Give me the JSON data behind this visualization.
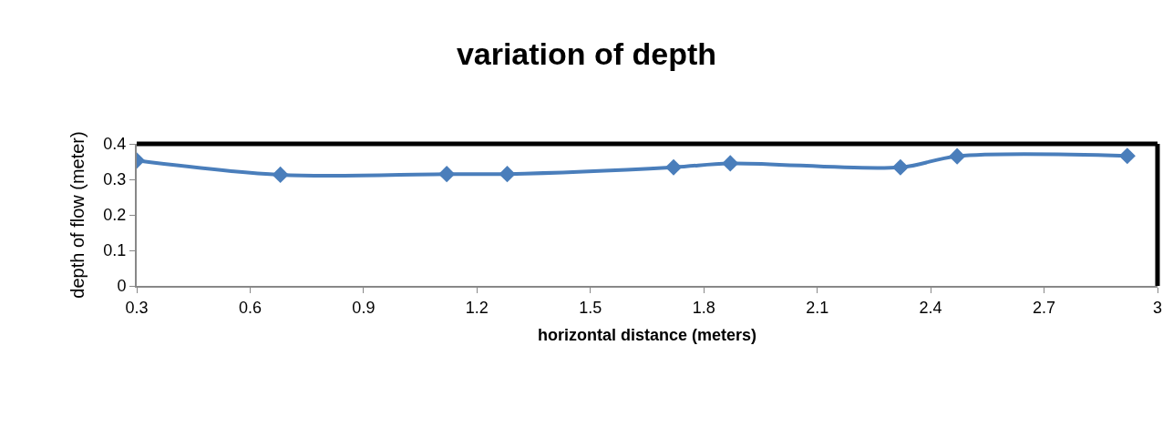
{
  "chart_data": {
    "type": "line",
    "title": "variation of depth",
    "xlabel": "horizontal distance (meters)",
    "ylabel": "depth of flow (meter)",
    "x": [
      0.3,
      0.68,
      1.12,
      1.28,
      1.72,
      1.87,
      2.32,
      2.47,
      2.92
    ],
    "series": [
      {
        "color": "#4a7ebb",
        "values": [
          0.353,
          0.313,
          0.315,
          0.315,
          0.334,
          0.345,
          0.334,
          0.365,
          0.366
        ]
      }
    ],
    "xlim": [
      0.3,
      3
    ],
    "xticks": [
      0.3,
      0.6,
      0.9,
      1.2,
      1.5,
      1.8,
      2.1,
      2.4,
      2.7,
      3
    ],
    "ylim": [
      0,
      0.4
    ],
    "yticks": [
      0,
      0.1,
      0.2,
      0.3,
      0.4
    ],
    "marker": "diamond",
    "line_style": "solid"
  }
}
